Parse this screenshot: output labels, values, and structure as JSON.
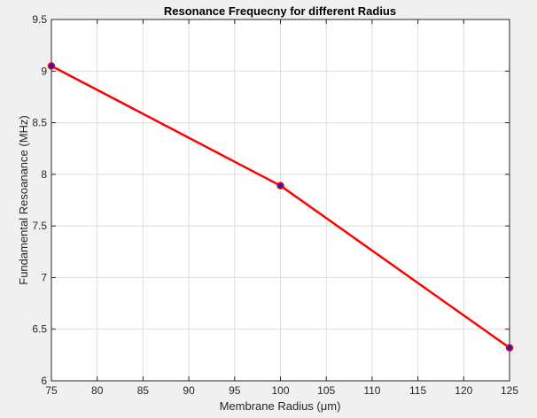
{
  "chart_data": {
    "type": "line",
    "title": "Resonance Frequecny for different Radius",
    "xlabel": "Membrane Radius (μm)",
    "ylabel": "Fundamental Resoanance (MHz)",
    "xlim": [
      75,
      125
    ],
    "ylim": [
      6,
      9.5
    ],
    "xticks": [
      75,
      80,
      85,
      90,
      95,
      100,
      105,
      110,
      115,
      120,
      125
    ],
    "yticks": [
      6,
      6.5,
      7,
      7.5,
      8,
      8.5,
      9,
      9.5
    ],
    "xtick_labels": [
      "75",
      "80",
      "85",
      "90",
      "95",
      "100",
      "105",
      "110",
      "115",
      "120",
      "125"
    ],
    "ytick_labels": [
      "6",
      "6.5",
      "7",
      "7.5",
      "8",
      "8.5",
      "9",
      "9.5"
    ],
    "grid": true,
    "x": [
      75,
      100,
      125
    ],
    "series": [
      {
        "values": [
          9.05,
          7.89,
          6.32
        ],
        "line_color": "#ff0000",
        "marker_color": "#1f1fbf",
        "marker_edge_color": "#ff0000"
      }
    ]
  }
}
